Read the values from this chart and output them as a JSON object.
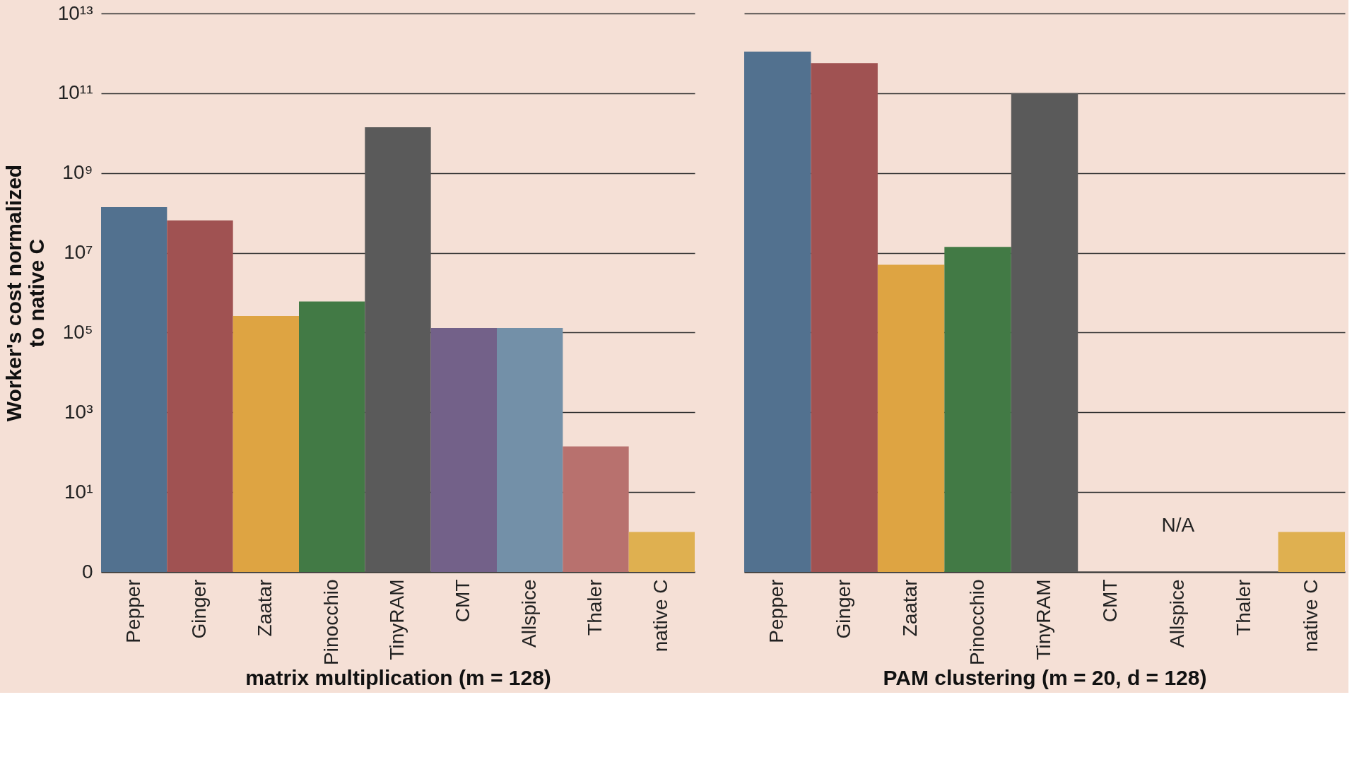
{
  "chart_data": [
    {
      "type": "bar",
      "xlabel": "matrix multiplication (m = 128)",
      "ylabel": "Worker's cost normalized\nto native C",
      "log": true,
      "grid": "y",
      "legend": false,
      "categories": [
        "Pepper",
        "Ginger",
        "Zaatar",
        "Pinocchio",
        "TinyRAM",
        "CMT",
        "Allspice",
        "Thaler",
        "native C"
      ],
      "values": [
        140000000,
        65000000,
        260000,
        600000,
        14000000000,
        130000,
        130000,
        140,
        1
      ],
      "colors": [
        "#52718f",
        "#a05252",
        "#dea442",
        "#427a45",
        "#5a5a5a",
        "#736189",
        "#7390a8",
        "#b8716e",
        "#dfb050"
      ],
      "ylim": [
        0.1,
        10000000000000
      ],
      "yticks": [
        {
          "value": 0.1,
          "label": "0"
        },
        {
          "value": 10,
          "label": "10¹"
        },
        {
          "value": 1000,
          "label": "10³"
        },
        {
          "value": 100000,
          "label": "10⁵"
        },
        {
          "value": 10000000,
          "label": "10⁷"
        },
        {
          "value": 1000000000,
          "label": "10⁹"
        },
        {
          "value": 100000000000,
          "label": "10¹¹"
        },
        {
          "value": 10000000000000,
          "label": "10¹³"
        }
      ]
    },
    {
      "type": "bar",
      "xlabel": "PAM clustering (m = 20, d = 128)",
      "log": true,
      "grid": "y",
      "legend": false,
      "tick_labels": "x",
      "categories": [
        "Pepper",
        "Ginger",
        "Zaatar",
        "Pinocchio",
        "TinyRAM",
        "CMT",
        "Allspice",
        "Thaler",
        "native C"
      ],
      "values": [
        1100000000000,
        570000000000,
        5000000,
        14000000,
        100000000000,
        null,
        null,
        null,
        1
      ],
      "colors": [
        "#52718f",
        "#a05252",
        "#dea442",
        "#427a45",
        "#5a5a5a",
        "#736189",
        "#7390a8",
        "#b8716e",
        "#dfb050"
      ],
      "ylim": [
        0.1,
        10000000000000
      ],
      "yticks": [
        0.1,
        10,
        1000,
        100000,
        10000000,
        1000000000,
        100000000000,
        10000000000000
      ],
      "annotations": [
        "N/A"
      ]
    }
  ]
}
